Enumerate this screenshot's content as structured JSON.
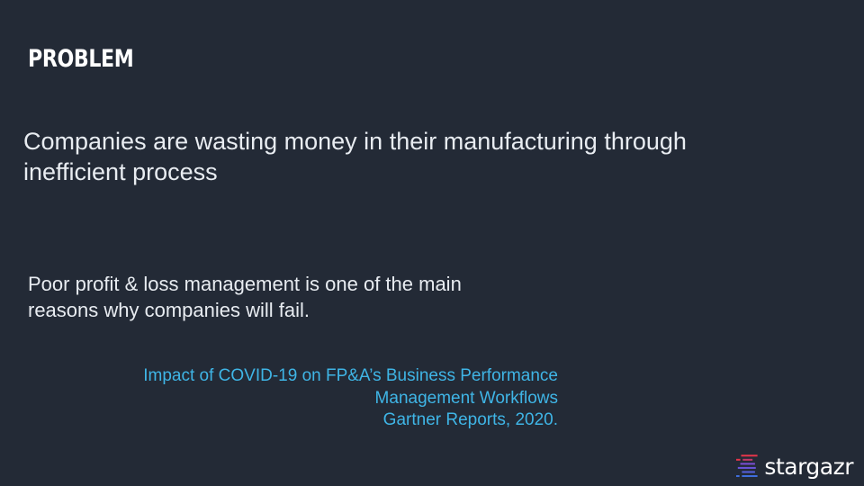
{
  "slide": {
    "title": "PROBLEM",
    "headline_lines": [
      "Companies are wasting money in their manufacturing through",
      "inefficient process"
    ],
    "statement_lines": [
      "Poor profit & loss management is one of the main",
      "reasons why companies will fail."
    ],
    "citation_lines": [
      "Impact of COVID-19 on FP&A’s Business Performance",
      "Management Workflows",
      "Gartner Reports, 2020."
    ]
  },
  "brand": {
    "name": "stargazr",
    "icon": "speed-lines-logo-icon",
    "colors": {
      "background": "#232a36",
      "text": "#e8ecf1",
      "citation": "#3fb5e6",
      "logo_red": "#e8354a",
      "logo_purple": "#7b4fd6",
      "logo_blue": "#3f6fe0"
    }
  }
}
